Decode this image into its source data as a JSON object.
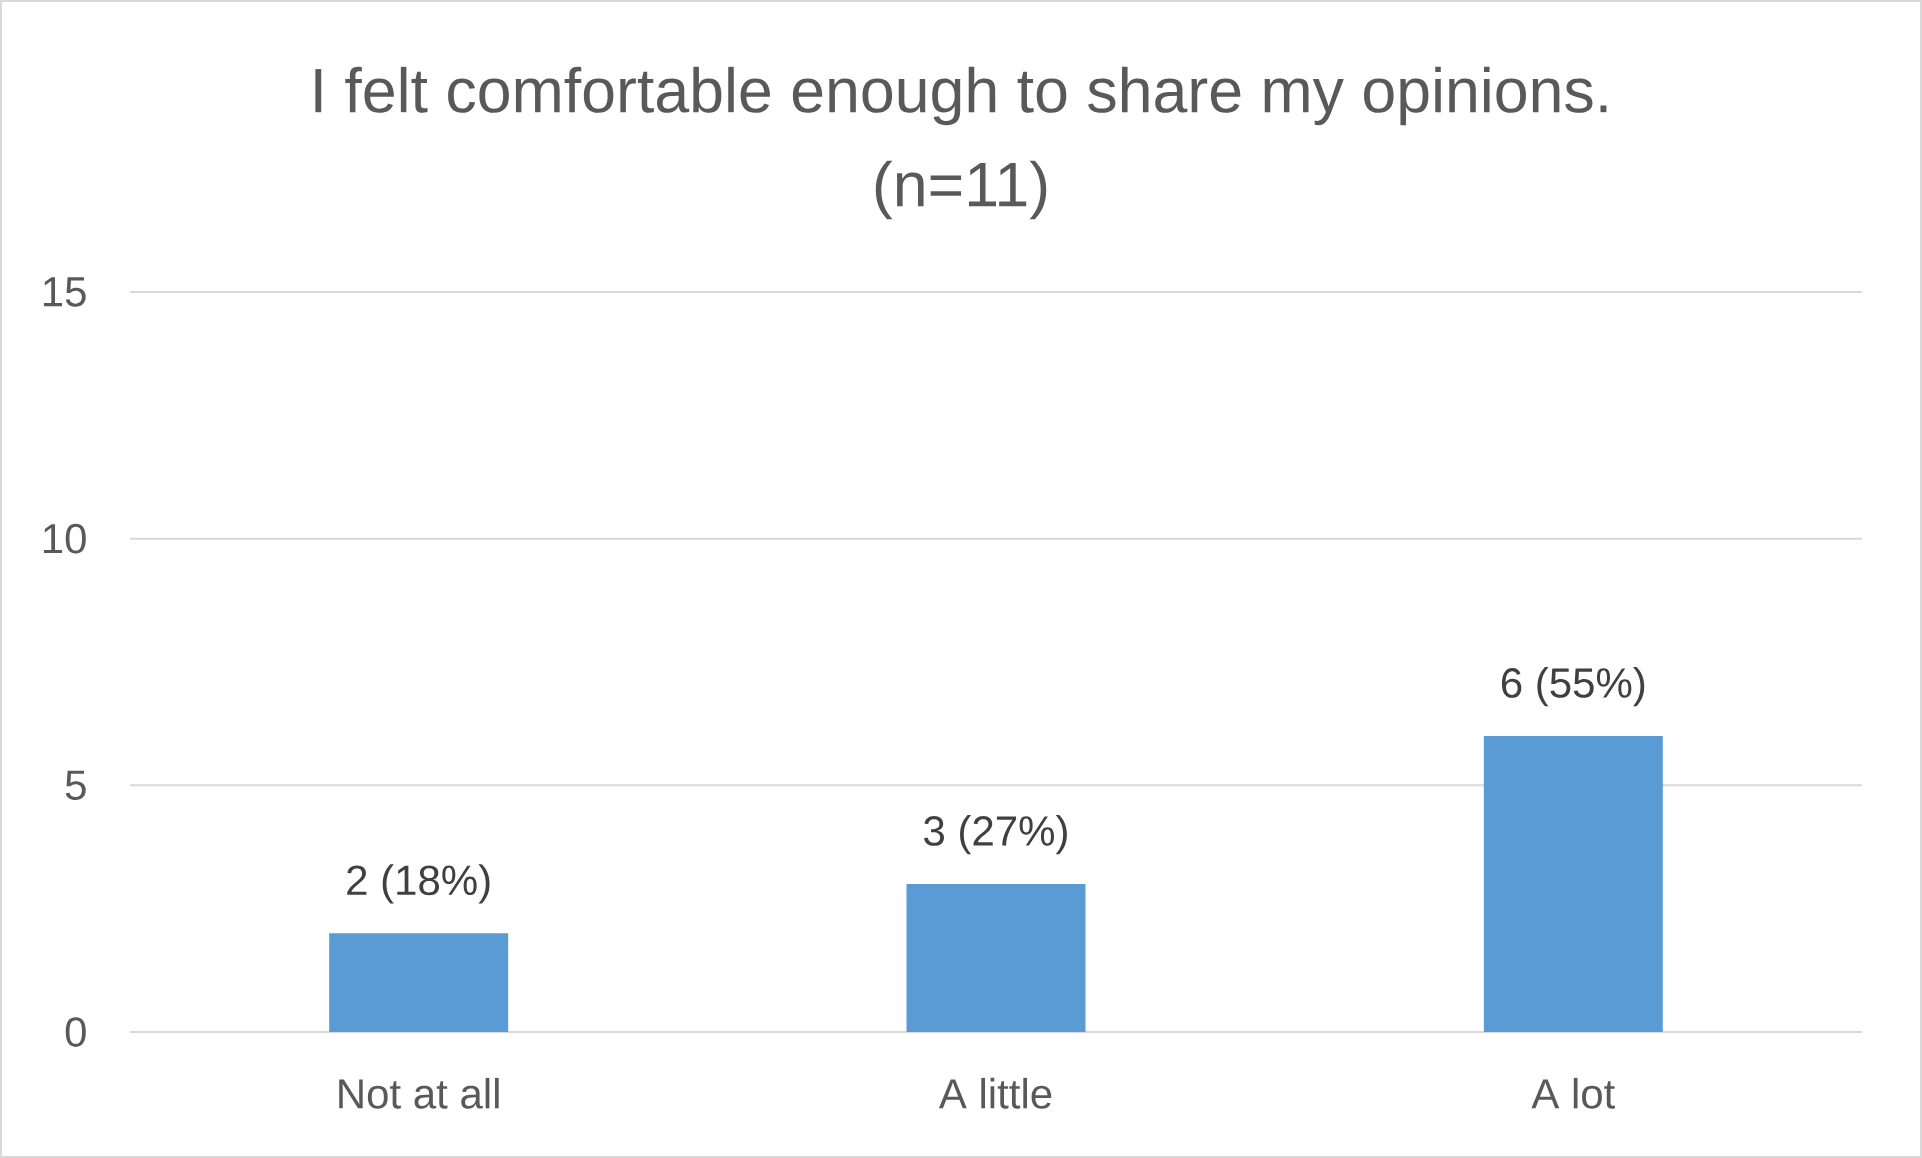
{
  "chart_data": {
    "type": "bar",
    "title": "I felt comfortable enough to share my opinions.",
    "subtitle": "(n=11)",
    "categories": [
      "Not at all",
      "A little",
      "A lot"
    ],
    "values": [
      2,
      3,
      6
    ],
    "value_labels": [
      "2 (18%)",
      "3 (27%)",
      "6 (55%)"
    ],
    "color": "#5b9bd5",
    "ylim": [
      0,
      15
    ],
    "yticks": [
      0,
      5,
      10,
      15
    ],
    "grid": "y"
  }
}
